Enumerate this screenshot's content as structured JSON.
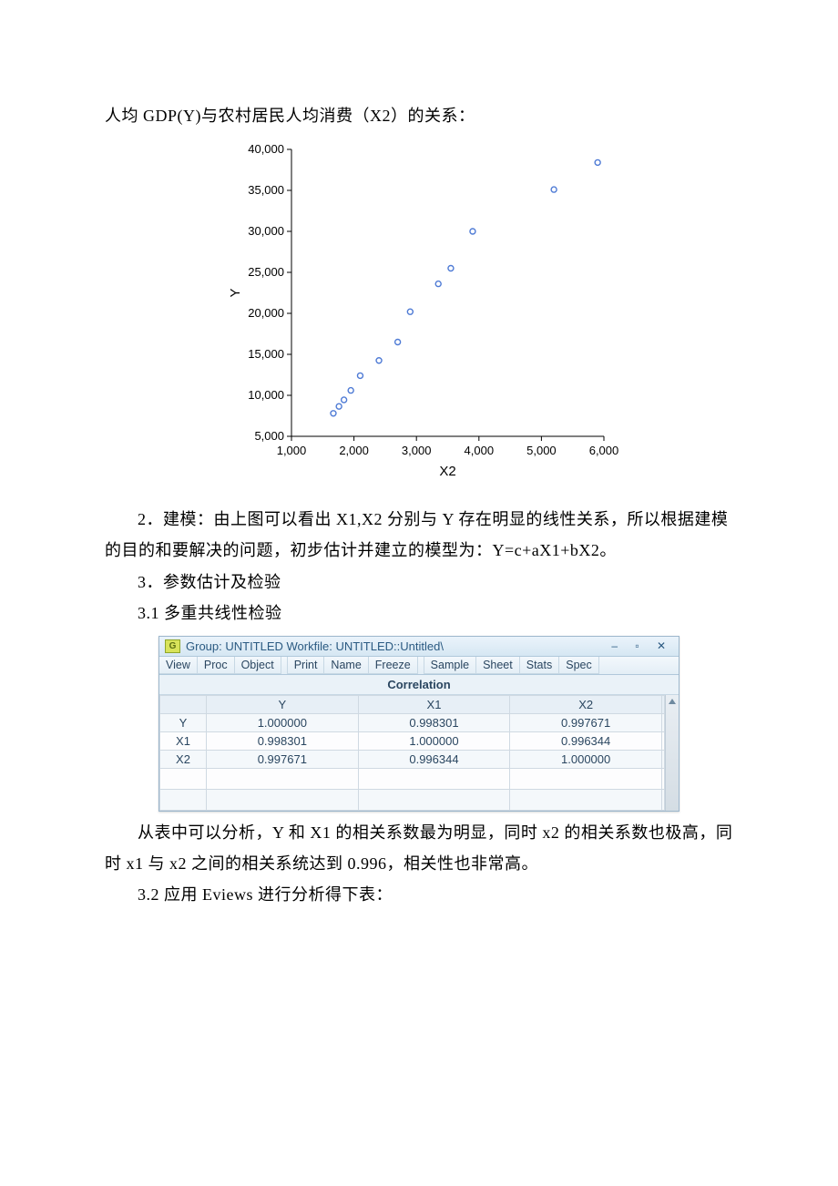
{
  "text": {
    "heading1": "人均 GDP(Y)与农村居民人均消费（X2）的关系：",
    "para2_full": "2．建模：由上图可以看出 X1,X2 分别与 Y 存在明显的线性关系，所以根据建模的目的和要解决的问题，初步估计并建立的模型为：Y=c+aX1+bX2。",
    "para3": "3．参数估计及检验",
    "para3_1": "3.1 多重共线性检验",
    "para4_full": "从表中可以分析，Y 和 X1 的相关系数最为明显，同时 x2 的相关系数也极高，同时 x1 与 x2 之间的相关系统达到 0.996，相关性也非常高。",
    "para3_2": "3.2 应用 Eviews 进行分析得下表："
  },
  "chart": {
    "type": "scatter",
    "xlabel": "X2",
    "ylabel": "Y",
    "xlim": [
      1000,
      6000
    ],
    "ylim": [
      5000,
      40000
    ],
    "xtick_step": 1000,
    "ytick_step": 5000,
    "ytick_labels": [
      "5,000",
      "10,000",
      "15,000",
      "20,000",
      "25,000",
      "30,000",
      "35,000",
      "40,000"
    ],
    "xtick_labels": [
      "1,000",
      "2,000",
      "3,000",
      "4,000",
      "5,000",
      "6,000"
    ],
    "marker_color": "#4f7bd5",
    "marker_fill": "#ffffff",
    "marker_radius": 3,
    "axis_color": "#000000",
    "background_color": "#ffffff",
    "label_fontsize": 13,
    "tick_fontsize": 13,
    "points": [
      [
        1670,
        7800
      ],
      [
        1760,
        8650
      ],
      [
        1840,
        9450
      ],
      [
        1950,
        10600
      ],
      [
        2100,
        12400
      ],
      [
        2400,
        14250
      ],
      [
        2700,
        16500
      ],
      [
        2900,
        20200
      ],
      [
        3350,
        23600
      ],
      [
        3550,
        25500
      ],
      [
        3900,
        30000
      ],
      [
        5200,
        35100
      ],
      [
        5900,
        38400
      ]
    ]
  },
  "eviews": {
    "title": "Group: UNTITLED   Workfile: UNTITLED::Untitled\\",
    "toolbar": [
      "View",
      "Proc",
      "Object",
      "Print",
      "Name",
      "Freeze",
      "Sample",
      "Sheet",
      "Stats",
      "Spec"
    ],
    "section": "Correlation",
    "columns": [
      "",
      "Y",
      "X1",
      "X2"
    ],
    "rows": [
      [
        "Y",
        "1.000000",
        "0.998301",
        "0.997671"
      ],
      [
        "X1",
        "0.998301",
        "1.000000",
        "0.996344"
      ],
      [
        "X2",
        "0.997671",
        "0.996344",
        "1.000000"
      ]
    ],
    "window_controls": "–  ▫  ✕",
    "colors": {
      "titlebar_top": "#eaf3fb",
      "titlebar_bottom": "#d6e7f3",
      "border": "#9db7cc",
      "text": "#2a4660"
    }
  }
}
